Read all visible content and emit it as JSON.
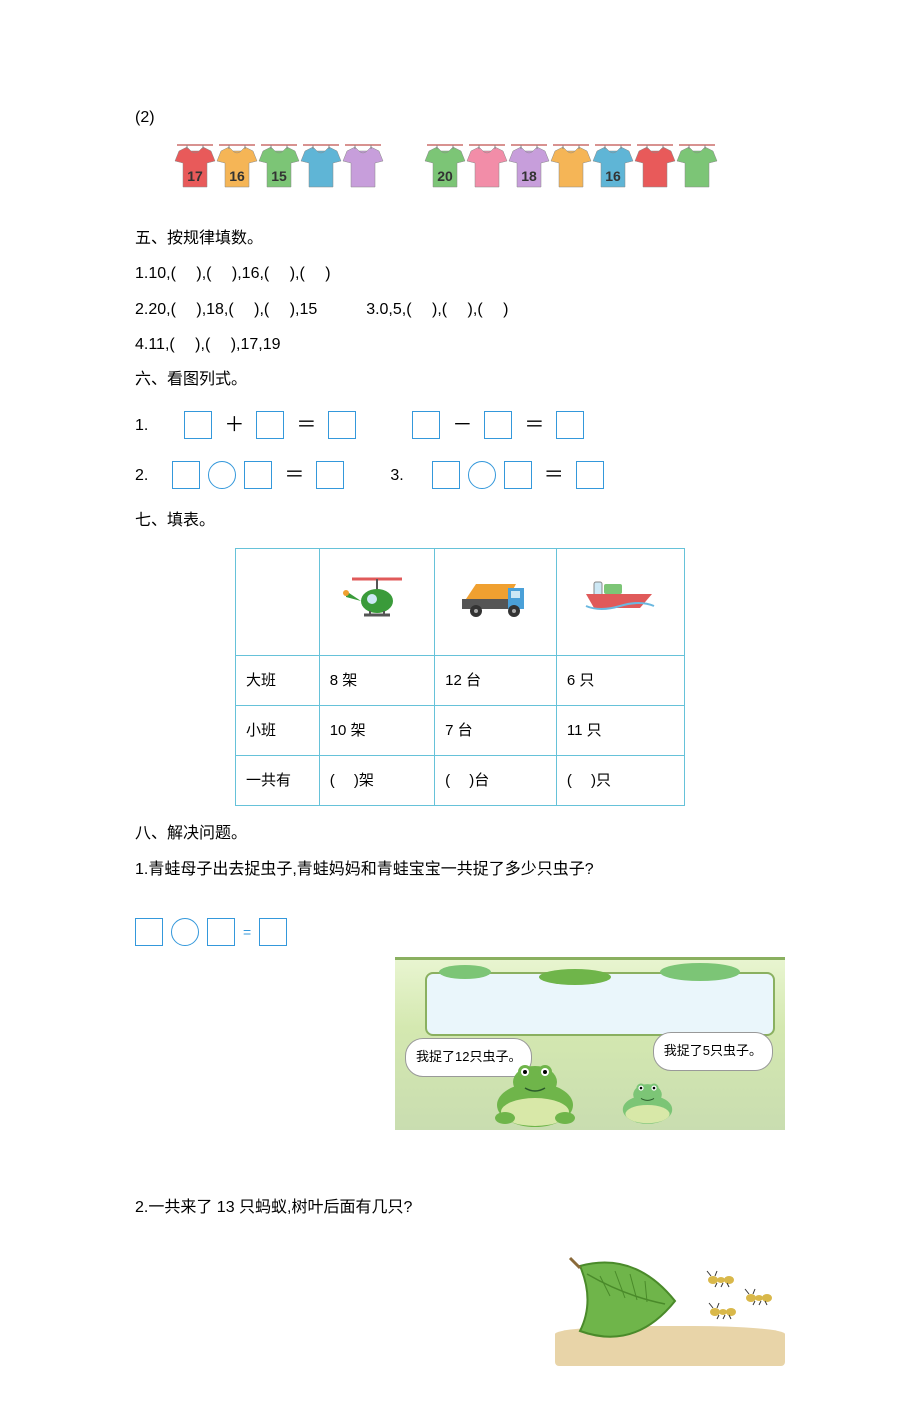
{
  "q2_label": "(2)",
  "shirt_line1": [
    {
      "num": "17",
      "fill": "#e85a5a"
    },
    {
      "num": "16",
      "fill": "#f5b556"
    },
    {
      "num": "15",
      "fill": "#7cc576"
    },
    {
      "num": "",
      "fill": "#5fb5d6"
    },
    {
      "num": "",
      "fill": "#c79edb"
    }
  ],
  "shirt_line2": [
    {
      "num": "20",
      "fill": "#7cc576"
    },
    {
      "num": "",
      "fill": "#f28da8"
    },
    {
      "num": "18",
      "fill": "#c79edb"
    },
    {
      "num": "",
      "fill": "#f5b556"
    },
    {
      "num": "16",
      "fill": "#5fb5d6"
    },
    {
      "num": "",
      "fill": "#e85a5a"
    },
    {
      "num": "",
      "fill": "#7cc576"
    }
  ],
  "sec5_title": "五、按规律填数。",
  "sec5_rows": {
    "r1": "1.10,(　 ),(　 ),16,(　 ),(　 )",
    "r2a": "2.20,(　 ),18,(　 ),(　 ),15",
    "r2b": "3.0,5,(　 ),(　 ),(　 )",
    "r3": "4.11,(　 ),(　 ),17,19"
  },
  "sec6_title": "六、看图列式。",
  "sec6": {
    "n1": "1.",
    "n2": "2.",
    "n3": "3.",
    "plus": "＋",
    "minus": "－",
    "eq": "＝"
  },
  "sec7_title": "七、填表。",
  "table": {
    "rows_header": [
      "",
      "",
      "",
      ""
    ],
    "row1": [
      "大班",
      "8 架",
      "12 台",
      "6 只"
    ],
    "row2": [
      "小班",
      "10 架",
      "7 台",
      "11 只"
    ],
    "row3": [
      "一共有",
      "(　 )架",
      "(　 )台",
      "(　 )只"
    ]
  },
  "sec8_title": "八、解决问题。",
  "sec8_q1": "1.青蛙母子出去捉虫子,青蛙妈妈和青蛙宝宝一共捉了多少只虫子?",
  "frog_mom_speech": "我捉了12只虫子。",
  "frog_baby_speech": "我捉了5只虫子。",
  "sec8_q2": "2.一共来了 13 只蚂蚁,树叶后面有几只?",
  "colors": {
    "box_border": "#3498db",
    "table_border": "#66c2d9",
    "heli_body": "#3a9b3a",
    "truck_body": "#f0a030",
    "truck_cab": "#4aa0d8",
    "boat_body": "#e05a5a",
    "leaf_fill": "#6fb54a",
    "ant_fill": "#d9b84a"
  }
}
